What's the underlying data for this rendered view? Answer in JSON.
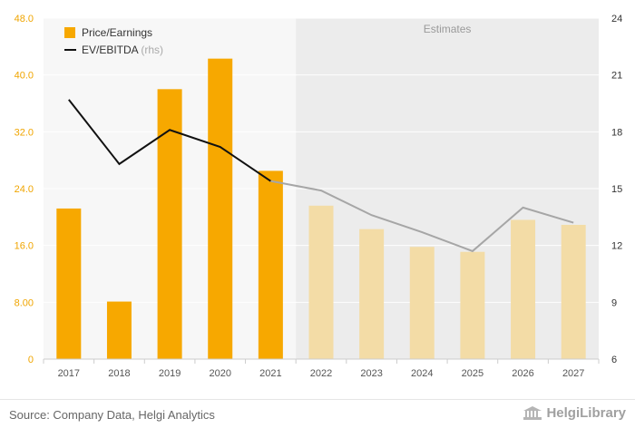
{
  "chart_data": {
    "type": "bar",
    "categories": [
      "2017",
      "2018",
      "2019",
      "2020",
      "2021",
      "2022",
      "2023",
      "2024",
      "2025",
      "2026",
      "2027"
    ],
    "estimates_label": "Estimates",
    "estimates_from": "2022",
    "series": [
      {
        "name": "Price/Earnings",
        "type": "bar",
        "axis": "left",
        "color": "#f7a800",
        "estimate_color": "#f3dca6",
        "values": [
          21.2,
          8.1,
          38.0,
          42.3,
          26.5,
          21.6,
          18.3,
          15.8,
          15.1,
          19.6,
          18.9
        ]
      },
      {
        "name": "EV/EBITDA",
        "name_suffix": "(rhs)",
        "type": "line",
        "axis": "right",
        "color": "#111111",
        "estimate_color": "#a6a6a6",
        "values": [
          19.7,
          16.3,
          18.1,
          17.2,
          15.4,
          14.9,
          13.6,
          12.7,
          11.7,
          14.0,
          13.2
        ]
      }
    ],
    "y_left": {
      "lim": [
        0,
        48
      ],
      "ticks": [
        "0",
        "8.00",
        "16.0",
        "24.0",
        "32.0",
        "40.0",
        "48.0"
      ],
      "tick_values": [
        0,
        8,
        16,
        24,
        32,
        40,
        48
      ],
      "color": "#f0a500"
    },
    "y_right": {
      "lim": [
        6,
        24
      ],
      "ticks": [
        "6",
        "9",
        "12",
        "15",
        "18",
        "21",
        "24"
      ],
      "tick_values": [
        6,
        9,
        12,
        15,
        18,
        21,
        24
      ],
      "color": "#333333"
    },
    "grid": true,
    "legend_position": "top-left"
  },
  "footer": {
    "source": "Source: Company Data, Helgi Analytics",
    "brand": "HelgiLibrary"
  }
}
